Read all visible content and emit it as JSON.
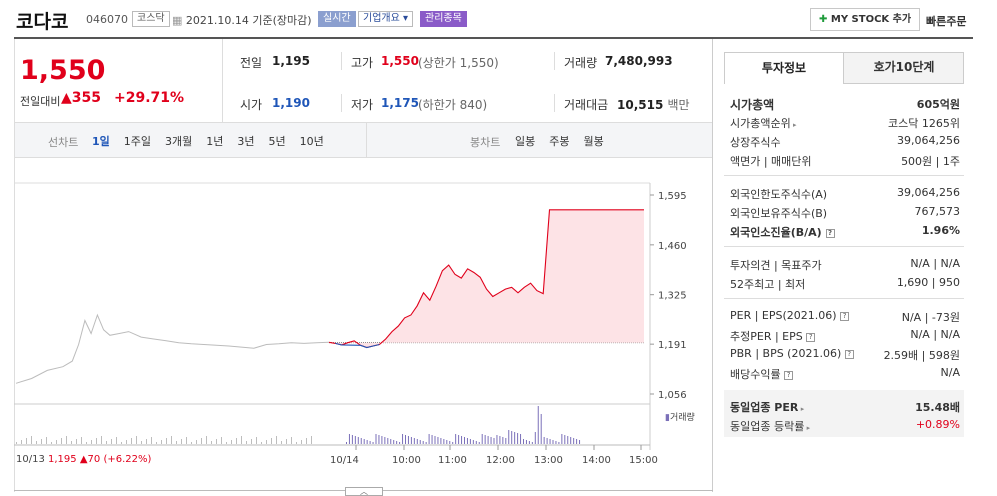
{
  "header": {
    "name": "코다코",
    "code": "046070",
    "market_tag": "코스닥",
    "date_text": "2021.10.14 기준(장마감)",
    "realtime": "실시간",
    "company_btn": "기업개요 ▾",
    "mgmt_tag": "관리종목",
    "mystock": "MY STOCK 추가",
    "quick": "빠른주문"
  },
  "price": {
    "current": "1,550",
    "prev_label": "전일대비",
    "change": "355",
    "rate": "+29.71%"
  },
  "stats": {
    "prev_label": "전일",
    "prev": "1,195",
    "high_label": "고가",
    "high": "1,550",
    "high_note": "(상한가 1,550)",
    "volume_label": "거래량",
    "volume": "7,480,993",
    "open_label": "시가",
    "open": "1,190",
    "low_label": "저가",
    "low": "1,175",
    "low_note": "(하한가 840)",
    "amount_label": "거래대금",
    "amount": "10,515",
    "amount_unit": "백만"
  },
  "tabs": {
    "line_label": "선차트",
    "periods": [
      "1일",
      "1주일",
      "3개월",
      "1년",
      "3년",
      "5년",
      "10년"
    ],
    "candle_label": "봉차트",
    "candle": [
      "일봉",
      "주봉",
      "월봉"
    ]
  },
  "chart": {
    "yticks": [
      "1,595",
      "1,460",
      "1,325",
      "1,191",
      "1,056"
    ],
    "vol_label": "거래량",
    "xlabels": [
      "10/14",
      "10:00",
      "11:00",
      "12:00",
      "13:00",
      "14:00",
      "15:00"
    ],
    "prev_day": "10/13",
    "prev_price": "1,195",
    "prev_change": "▲70",
    "prev_rate": "(+6.22%)"
  },
  "side": {
    "tab1": "투자정보",
    "tab2": "호가10단계",
    "mcap_label": "시가총액",
    "mcap": "605억원",
    "rank_label": "시가총액순위",
    "rank": "코스닥 1265위",
    "shares_label": "상장주식수",
    "shares": "39,064,256",
    "face_label": "액면가 | 매매단위",
    "face": "500원 | 1주",
    "f_limit_label": "외국인한도주식수(A)",
    "f_limit": "39,064,256",
    "f_hold_label": "외국인보유주식수(B)",
    "f_hold": "767,573",
    "f_ratio_label": "외국인소진율(B/A)",
    "f_ratio": "1.96%",
    "opinion_label": "투자의견 | 목표주가",
    "opinion": "N/A | N/A",
    "w52_label": "52주최고 | 최저",
    "w52": "1,690 | 950",
    "per_label": "PER | EPS(2021.06)",
    "per": "N/A | -73원",
    "eper_label": "추정PER | EPS",
    "eper": "N/A | N/A",
    "pbr_label": "PBR | BPS (2021.06)",
    "pbr": "2.59배 | 598원",
    "div_label": "배당수익률",
    "div": "N/A",
    "ind_per_label": "동일업종 PER",
    "ind_per": "15.48배",
    "ind_rate_label": "동일업종 등락률",
    "ind_rate": "+0.89%"
  },
  "chart_data": {
    "type": "line",
    "title": "",
    "ylim": [
      1056,
      1595
    ],
    "base": 1195,
    "x_range": [
      "09:00",
      "15:30"
    ],
    "series": [
      {
        "name": "",
        "points": [
          [
            0,
            1196
          ],
          [
            2,
            1193
          ],
          [
            4,
            1189
          ],
          [
            6,
            1195
          ],
          [
            8,
            1200
          ],
          [
            10,
            1188
          ],
          [
            12,
            1182
          ],
          [
            14,
            1186
          ],
          [
            16,
            1190
          ],
          [
            18,
            1205
          ],
          [
            20,
            1225
          ],
          [
            22,
            1240
          ],
          [
            24,
            1262
          ],
          [
            26,
            1270
          ],
          [
            28,
            1295
          ],
          [
            30,
            1330
          ],
          [
            32,
            1310
          ],
          [
            34,
            1348
          ],
          [
            36,
            1390
          ],
          [
            38,
            1405
          ],
          [
            40,
            1380
          ],
          [
            42,
            1370
          ],
          [
            44,
            1395
          ],
          [
            46,
            1385
          ],
          [
            48,
            1372
          ],
          [
            50,
            1340
          ],
          [
            52,
            1320
          ],
          [
            54,
            1330
          ],
          [
            56,
            1340
          ],
          [
            58,
            1345
          ],
          [
            60,
            1330
          ],
          [
            62,
            1345
          ],
          [
            64,
            1356
          ],
          [
            66,
            1336
          ],
          [
            68,
            1328
          ],
          [
            70,
            1555
          ],
          [
            73,
            1555
          ],
          [
            76,
            1555
          ],
          [
            79,
            1555
          ],
          [
            82,
            1555
          ],
          [
            85,
            1555
          ],
          [
            88,
            1555
          ],
          [
            91,
            1555
          ],
          [
            94,
            1555
          ],
          [
            97,
            1555
          ],
          [
            100,
            1555
          ]
        ]
      }
    ],
    "prev_day_series": [
      [
        0,
        1085
      ],
      [
        5,
        1098
      ],
      [
        10,
        1120
      ],
      [
        15,
        1130
      ],
      [
        18,
        1145
      ],
      [
        20,
        1190
      ],
      [
        22,
        1255
      ],
      [
        24,
        1220
      ],
      [
        26,
        1270
      ],
      [
        28,
        1230
      ],
      [
        30,
        1215
      ],
      [
        33,
        1220
      ],
      [
        36,
        1225
      ],
      [
        40,
        1210
      ],
      [
        44,
        1205
      ],
      [
        48,
        1200
      ],
      [
        52,
        1195
      ],
      [
        56,
        1192
      ],
      [
        60,
        1190
      ],
      [
        64,
        1188
      ],
      [
        68,
        1186
      ],
      [
        72,
        1183
      ],
      [
        76,
        1180
      ],
      [
        80,
        1190
      ],
      [
        84,
        1192
      ],
      [
        88,
        1195
      ],
      [
        92,
        1193
      ],
      [
        96,
        1195
      ],
      [
        100,
        1196
      ]
    ]
  }
}
